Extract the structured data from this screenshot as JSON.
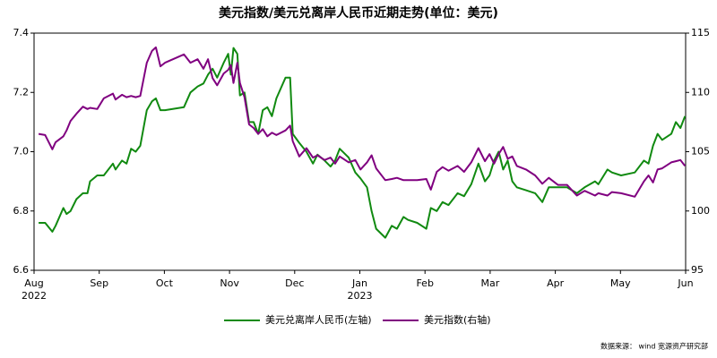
{
  "chart_data": {
    "type": "line",
    "title": "美元指数/美元兑离岸人民币近期走势(单位：美元)",
    "source": "数据来源： wind 宽源资产研究部",
    "x": [
      0.07,
      0.17,
      0.28,
      0.33,
      0.45,
      0.5,
      0.56,
      0.65,
      0.75,
      0.82,
      0.86,
      0.97,
      1.07,
      1.21,
      1.25,
      1.35,
      1.42,
      1.49,
      1.56,
      1.63,
      1.73,
      1.81,
      1.87,
      1.94,
      2.01,
      2.3,
      2.4,
      2.51,
      2.6,
      2.67,
      2.74,
      2.81,
      2.91,
      2.98,
      3.02,
      3.06,
      3.12,
      3.16,
      3.23,
      3.3,
      3.37,
      3.44,
      3.51,
      3.58,
      3.65,
      3.72,
      3.86,
      3.93,
      3.97,
      4.07,
      4.18,
      4.28,
      4.35,
      4.46,
      4.55,
      4.62,
      4.69,
      4.83,
      4.93,
      5.01,
      5.11,
      5.18,
      5.25,
      5.39,
      5.49,
      5.57,
      5.67,
      5.74,
      5.88,
      6.02,
      6.09,
      6.18,
      6.27,
      6.36,
      6.5,
      6.6,
      6.71,
      6.82,
      6.92,
      6.99,
      7.06,
      7.13,
      7.2,
      7.27,
      7.34,
      7.41,
      7.55,
      7.69,
      7.8,
      7.9,
      8.04,
      8.18,
      8.33,
      8.45,
      8.61,
      8.66,
      8.8,
      8.87,
      9.01,
      9.22,
      9.36,
      9.43,
      9.5,
      9.57,
      9.64,
      9.78,
      9.85,
      9.92,
      9.99
    ],
    "series": [
      {
        "name": "美元兑离岸人民币(左轴)",
        "color": "#118a11",
        "axis": "y",
        "values": [
          6.76,
          6.76,
          6.73,
          6.75,
          6.81,
          6.79,
          6.8,
          6.84,
          6.86,
          6.86,
          6.9,
          6.92,
          6.92,
          6.96,
          6.94,
          6.97,
          6.96,
          7.01,
          7.0,
          7.02,
          7.14,
          7.17,
          7.18,
          7.14,
          7.14,
          7.15,
          7.2,
          7.22,
          7.23,
          7.26,
          7.28,
          7.25,
          7.3,
          7.33,
          7.26,
          7.35,
          7.33,
          7.19,
          7.2,
          7.1,
          7.1,
          7.06,
          7.14,
          7.15,
          7.12,
          7.18,
          7.25,
          7.25,
          7.06,
          7.03,
          7.0,
          6.96,
          6.99,
          6.97,
          6.95,
          6.97,
          7.01,
          6.98,
          6.93,
          6.91,
          6.88,
          6.8,
          6.74,
          6.71,
          6.75,
          6.74,
          6.78,
          6.77,
          6.76,
          6.74,
          6.81,
          6.8,
          6.83,
          6.82,
          6.86,
          6.85,
          6.89,
          6.96,
          6.9,
          6.92,
          6.97,
          7.0,
          6.94,
          6.97,
          6.9,
          6.88,
          6.87,
          6.86,
          6.83,
          6.88,
          6.88,
          6.88,
          6.86,
          6.88,
          6.9,
          6.89,
          6.94,
          6.93,
          6.92,
          6.93,
          6.97,
          6.96,
          7.02,
          7.06,
          7.04,
          7.06,
          7.1,
          7.08,
          7.12
        ]
      },
      {
        "name": "美元指数(右轴)",
        "color": "#800080",
        "axis": "y2",
        "values": [
          106.5,
          106.4,
          105.2,
          105.8,
          106.3,
          106.8,
          107.6,
          108.2,
          108.8,
          108.6,
          108.7,
          108.6,
          109.5,
          109.9,
          109.4,
          109.8,
          109.6,
          109.7,
          109.6,
          109.7,
          112.5,
          113.5,
          113.8,
          112.2,
          112.5,
          113.2,
          112.5,
          112.8,
          112.0,
          112.8,
          111.2,
          110.6,
          111.6,
          111.9,
          112.3,
          110.8,
          112.5,
          110.8,
          109.6,
          107.3,
          107.0,
          106.5,
          106.9,
          106.3,
          106.6,
          106.4,
          106.8,
          107.2,
          105.9,
          104.6,
          105.3,
          104.5,
          104.7,
          104.3,
          104.5,
          104.0,
          104.6,
          104.1,
          104.3,
          103.5,
          104.1,
          104.7,
          103.6,
          102.6,
          102.7,
          102.8,
          102.6,
          102.6,
          102.6,
          102.7,
          101.8,
          103.3,
          103.7,
          103.4,
          103.8,
          103.3,
          104.1,
          105.3,
          104.2,
          104.8,
          104.0,
          104.8,
          105.4,
          104.4,
          104.6,
          103.8,
          103.5,
          103.0,
          102.3,
          102.8,
          102.2,
          102.2,
          101.3,
          101.7,
          101.3,
          101.5,
          101.3,
          101.6,
          101.5,
          101.2,
          102.5,
          103.0,
          102.4,
          103.5,
          103.6,
          104.1,
          104.2,
          104.3,
          103.8
        ]
      }
    ],
    "xlim": [
      0,
      10
    ],
    "xticks": [
      {
        "value": 0,
        "label": "Aug",
        "sublabel": "2022"
      },
      {
        "value": 1,
        "label": "Sep"
      },
      {
        "value": 2,
        "label": "Oct"
      },
      {
        "value": 3,
        "label": "Nov"
      },
      {
        "value": 4,
        "label": "Dec"
      },
      {
        "value": 5,
        "label": "Jan",
        "sublabel": "2023"
      },
      {
        "value": 6,
        "label": "Feb"
      },
      {
        "value": 7,
        "label": "Mar"
      },
      {
        "value": 8,
        "label": "Apr"
      },
      {
        "value": 9,
        "label": "May"
      },
      {
        "value": 10,
        "label": "Jun"
      }
    ],
    "ylim": [
      6.6,
      7.4
    ],
    "yticks": [
      6.6,
      6.8,
      {
        "value": 7,
        "label": "7.0"
      },
      7.2,
      7.4
    ],
    "y2lim": [
      95,
      115
    ],
    "y2ticks": [
      95,
      100,
      105,
      110,
      115
    ],
    "legend": "bottom"
  }
}
